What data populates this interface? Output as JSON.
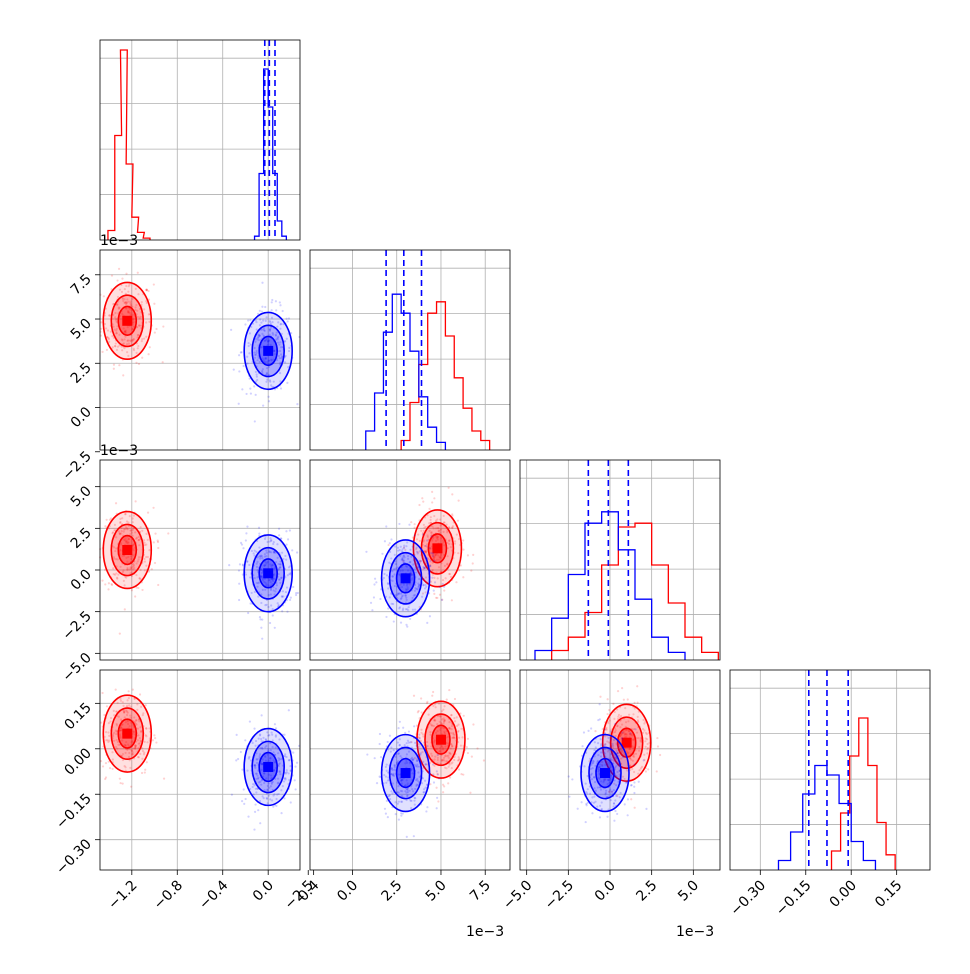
{
  "chart_data": {
    "type": "corner",
    "parameters": 4,
    "series": [
      {
        "name": "",
        "color": "#ff0000"
      },
      {
        "name": "",
        "color": "#0000ff"
      }
    ],
    "axes": [
      {
        "range": [
          -1.48,
          0.28
        ],
        "ticks": [
          "-1.2",
          "-0.8",
          "-0.4",
          "0.0",
          "0.4"
        ],
        "tick_values": [
          -1.2,
          -0.8,
          -0.4,
          0.0,
          0.4
        ],
        "offset_label": ""
      },
      {
        "range": [
          -2.4,
          8.9
        ],
        "ticks": [
          "-2.5",
          "0.0",
          "2.5",
          "5.0",
          "7.5"
        ],
        "tick_values": [
          -2.5,
          0,
          2.5,
          5,
          7.5
        ],
        "offset_label": "1e−3"
      },
      {
        "range": [
          -5.4,
          6.6
        ],
        "ticks": [
          "-5.0",
          "-2.5",
          "0.0",
          "2.5",
          "5.0"
        ],
        "tick_values": [
          -5,
          -2.5,
          0,
          2.5,
          5
        ],
        "offset_label": "1e−3"
      },
      {
        "range": [
          -0.4,
          0.26
        ],
        "ticks": [
          "-0.30",
          "-0.15",
          "0.00",
          "0.15"
        ],
        "tick_values": [
          -0.3,
          -0.15,
          0.0,
          0.15
        ],
        "offset_label": ""
      }
    ],
    "marginals": [
      {
        "red": [
          [
            -1.38,
            0.05
          ],
          [
            -1.32,
            0.55
          ],
          [
            -1.27,
            1.0
          ],
          [
            -1.22,
            0.4
          ],
          [
            -1.17,
            0.12
          ],
          [
            -1.12,
            0.04
          ],
          [
            -1.07,
            0.01
          ]
        ],
        "blue": [
          [
            -0.1,
            0.02
          ],
          [
            -0.06,
            0.35
          ],
          [
            -0.02,
            0.9
          ],
          [
            0.02,
            0.7
          ],
          [
            0.06,
            0.35
          ],
          [
            0.1,
            0.1
          ],
          [
            0.14,
            0.02
          ]
        ],
        "quantiles": [
          -0.03,
          0.01,
          0.06
        ]
      },
      {
        "red": [
          [
            3.0,
            0.05
          ],
          [
            3.5,
            0.25
          ],
          [
            4.0,
            0.45
          ],
          [
            4.5,
            0.72
          ],
          [
            5.0,
            0.78
          ],
          [
            5.5,
            0.6
          ],
          [
            6.0,
            0.38
          ],
          [
            6.5,
            0.22
          ],
          [
            7.0,
            0.1
          ],
          [
            7.5,
            0.05
          ]
        ],
        "blue": [
          [
            1.0,
            0.1
          ],
          [
            1.5,
            0.3
          ],
          [
            2.0,
            0.62
          ],
          [
            2.5,
            0.82
          ],
          [
            3.0,
            0.72
          ],
          [
            3.5,
            0.52
          ],
          [
            4.0,
            0.28
          ],
          [
            4.5,
            0.12
          ],
          [
            5.0,
            0.04
          ]
        ],
        "quantiles": [
          1.9,
          2.9,
          3.9
        ]
      },
      {
        "red": [
          [
            -3.0,
            0.05
          ],
          [
            -2.0,
            0.12
          ],
          [
            -1.0,
            0.25
          ],
          [
            0.0,
            0.5
          ],
          [
            1.0,
            0.7
          ],
          [
            2.0,
            0.72
          ],
          [
            3.0,
            0.5
          ],
          [
            4.0,
            0.3
          ],
          [
            5.0,
            0.12
          ],
          [
            6.0,
            0.04
          ]
        ],
        "blue": [
          [
            -4.0,
            0.05
          ],
          [
            -3.0,
            0.22
          ],
          [
            -2.0,
            0.45
          ],
          [
            -1.0,
            0.72
          ],
          [
            0.0,
            0.78
          ],
          [
            1.0,
            0.58
          ],
          [
            2.0,
            0.32
          ],
          [
            3.0,
            0.12
          ],
          [
            4.0,
            0.04
          ]
        ],
        "quantiles": [
          -1.3,
          -0.1,
          1.1
        ]
      },
      {
        "red": [
          [
            -0.05,
            0.1
          ],
          [
            -0.02,
            0.3
          ],
          [
            0.01,
            0.6
          ],
          [
            0.04,
            0.8
          ],
          [
            0.07,
            0.55
          ],
          [
            0.1,
            0.25
          ],
          [
            0.13,
            0.08
          ]
        ],
        "blue": [
          [
            -0.22,
            0.05
          ],
          [
            -0.18,
            0.2
          ],
          [
            -0.14,
            0.4
          ],
          [
            -0.1,
            0.55
          ],
          [
            -0.06,
            0.5
          ],
          [
            -0.02,
            0.35
          ],
          [
            0.02,
            0.15
          ],
          [
            0.06,
            0.05
          ]
        ],
        "quantiles": [
          -0.14,
          -0.08,
          -0.01
        ]
      }
    ],
    "pairs": [
      {
        "row": 1,
        "col": 0,
        "red_center": [
          -1.24,
          4.9
        ],
        "blue_center": [
          0.0,
          3.2
        ]
      },
      {
        "row": 2,
        "col": 0,
        "red_center": [
          -1.24,
          1.2
        ],
        "blue_center": [
          0.0,
          -0.2
        ]
      },
      {
        "row": 2,
        "col": 1,
        "red_center": [
          4.8,
          1.3
        ],
        "blue_center": [
          3.0,
          -0.5
        ]
      },
      {
        "row": 3,
        "col": 0,
        "red_center": [
          -1.24,
          0.05
        ],
        "blue_center": [
          0.0,
          -0.06
        ]
      },
      {
        "row": 3,
        "col": 1,
        "red_center": [
          5.0,
          0.03
        ],
        "blue_center": [
          3.0,
          -0.08
        ]
      },
      {
        "row": 3,
        "col": 2,
        "red_center": [
          1.0,
          0.02
        ],
        "blue_center": [
          -0.3,
          -0.08
        ]
      }
    ]
  },
  "texts": {
    "offset_row1": "1e−3",
    "offset_row2": "1e−3",
    "offset_col1": "1e−3",
    "offset_col2": "1e−3"
  }
}
